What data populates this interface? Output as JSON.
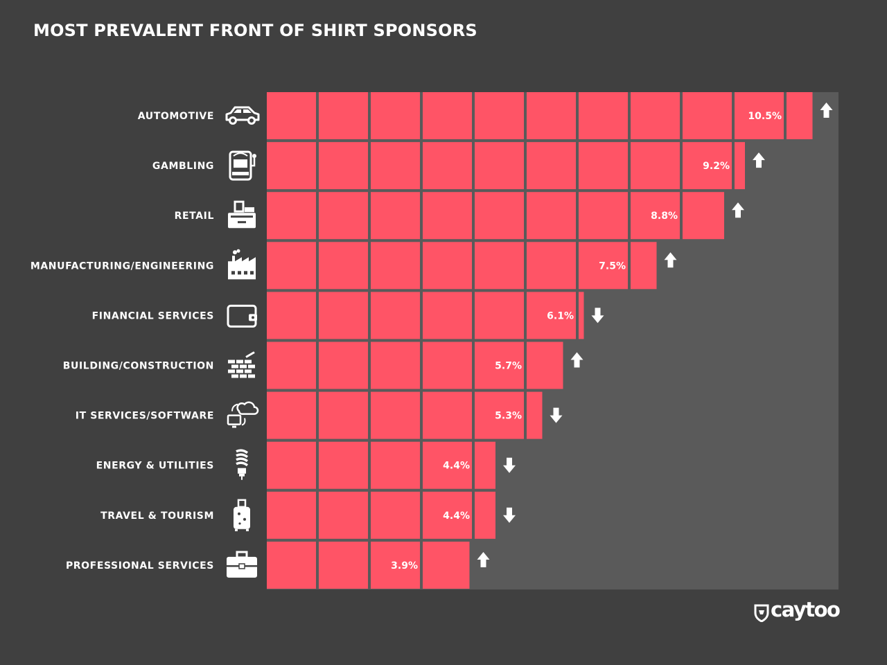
{
  "title": "MOST PREVALENT FRONT OF SHIRT SPONSORS",
  "brand": "caytoo",
  "colors": {
    "background": "#404040",
    "panel": "#5a5a5a",
    "bar": "#ff5466",
    "text": "#ffffff"
  },
  "chart_data": {
    "type": "bar",
    "orientation": "horizontal",
    "unit": "%",
    "xlim": [
      0,
      11
    ],
    "grid": true,
    "categories": [
      "AUTOMOTIVE",
      "GAMBLING",
      "RETAIL",
      "MANUFACTURING/ENGINEERING",
      "FINANCIAL SERVICES",
      "BUILDING/CONSTRUCTION",
      "IT SERVICES/SOFTWARE",
      "ENERGY & UTILITIES",
      "TRAVEL & TOURISM",
      "PROFESSIONAL SERVICES"
    ],
    "values": [
      10.5,
      9.2,
      8.8,
      7.5,
      6.1,
      5.7,
      5.3,
      4.4,
      4.4,
      3.9
    ],
    "labels": [
      "10.5%",
      "9.2%",
      "8.8%",
      "7.5%",
      "6.1%",
      "5.7%",
      "5.3%",
      "4.4%",
      "4.4%",
      "3.9%"
    ],
    "trend": [
      "up",
      "up",
      "up",
      "up",
      "down",
      "up",
      "down",
      "down",
      "down",
      "up"
    ],
    "icons": [
      "car-icon",
      "slot-machine-icon",
      "cash-register-icon",
      "factory-icon",
      "wallet-icon",
      "brick-wall-icon",
      "cloud-computer-icon",
      "light-bulb-icon",
      "suitcase-icon",
      "briefcase-icon"
    ]
  }
}
